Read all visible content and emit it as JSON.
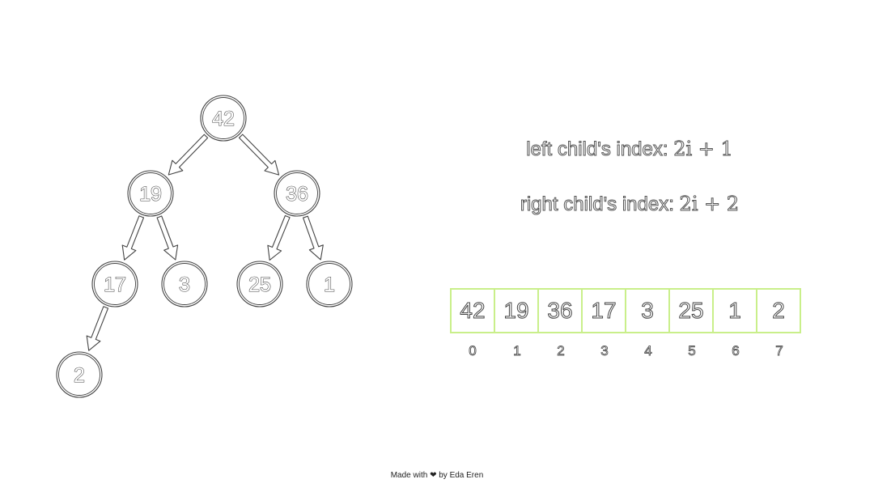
{
  "tree": {
    "nodes": [
      "42",
      "19",
      "36",
      "17",
      "3",
      "25",
      "1",
      "2"
    ]
  },
  "formulas": {
    "left_prefix": "left child's index: ",
    "left_math": "2i + 1",
    "right_prefix": "right child's index: ",
    "right_math": "2i + 2"
  },
  "array": {
    "values": [
      "42",
      "19",
      "36",
      "17",
      "3",
      "25",
      "1",
      "2"
    ],
    "indices": [
      "0",
      "1",
      "2",
      "3",
      "4",
      "5",
      "6",
      "7"
    ]
  },
  "footer": {
    "credit": "Made with ❤ by Eda Eren"
  },
  "colors": {
    "array_border": "#c9ef8a",
    "outline": "#444444"
  }
}
